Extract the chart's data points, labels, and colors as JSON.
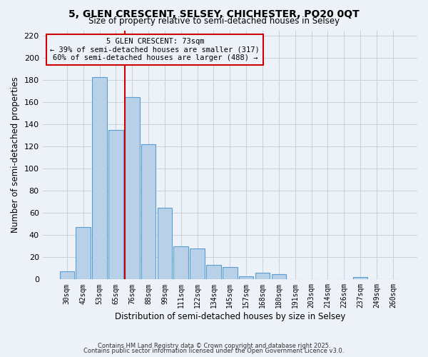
{
  "title": "5, GLEN CRESCENT, SELSEY, CHICHESTER, PO20 0QT",
  "subtitle": "Size of property relative to semi-detached houses in Selsey",
  "xlabel": "Distribution of semi-detached houses by size in Selsey",
  "ylabel": "Number of semi-detached properties",
  "bar_labels": [
    "30sqm",
    "42sqm",
    "53sqm",
    "65sqm",
    "76sqm",
    "88sqm",
    "99sqm",
    "111sqm",
    "122sqm",
    "134sqm",
    "145sqm",
    "157sqm",
    "168sqm",
    "180sqm",
    "191sqm",
    "203sqm",
    "214sqm",
    "226sqm",
    "237sqm",
    "249sqm",
    "260sqm"
  ],
  "bar_values": [
    7,
    47,
    183,
    135,
    165,
    122,
    65,
    30,
    28,
    13,
    11,
    3,
    6,
    5,
    0,
    0,
    0,
    0,
    2,
    0,
    0
  ],
  "bar_color": "#b8d0e8",
  "bar_edgecolor": "#5a9fd4",
  "vline_bar_index": 4,
  "annotation_title": "5 GLEN CRESCENT: 73sqm",
  "annotation_line1": "← 39% of semi-detached houses are smaller (317)",
  "annotation_line2": "60% of semi-detached houses are larger (488) →",
  "annotation_box_edgecolor": "#cc0000",
  "vline_color": "#cc0000",
  "ylim": [
    0,
    225
  ],
  "yticks": [
    0,
    20,
    40,
    60,
    80,
    100,
    120,
    140,
    160,
    180,
    200,
    220
  ],
  "background_color": "#edf2f9",
  "grid_color": "#c8d0dc",
  "footer1": "Contains HM Land Registry data © Crown copyright and database right 2025.",
  "footer2": "Contains public sector information licensed under the Open Government Licence v3.0."
}
